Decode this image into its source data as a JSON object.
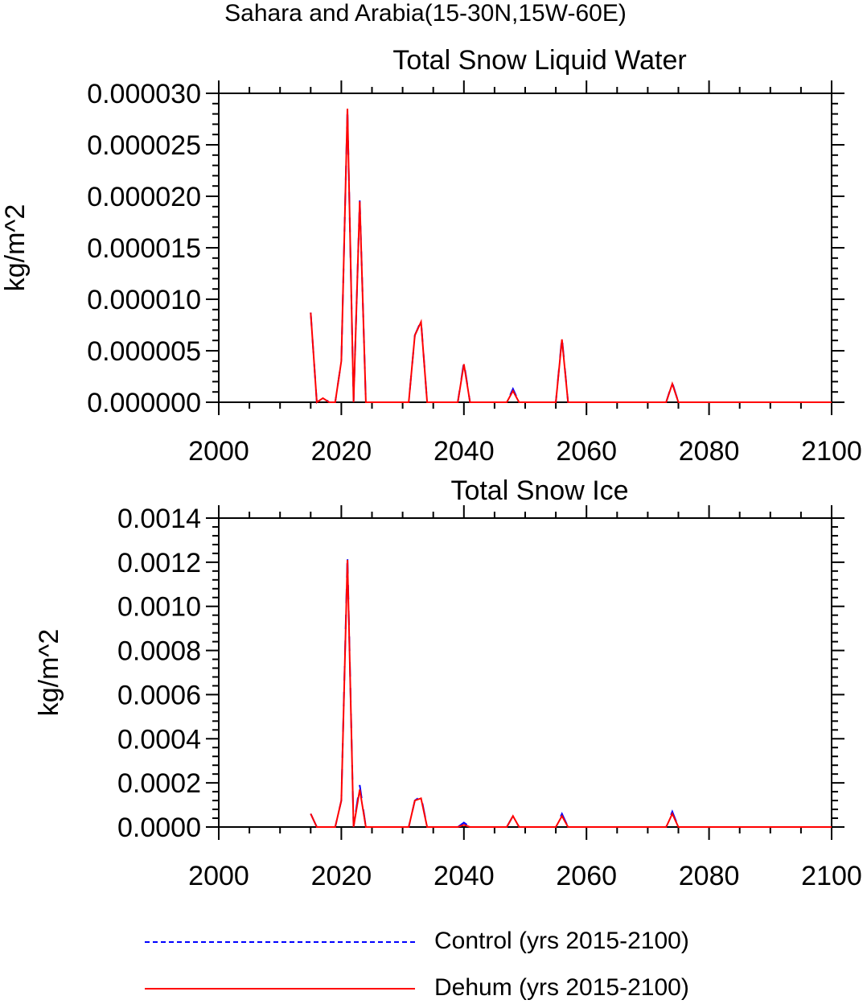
{
  "figure": {
    "supertitle": "Sahara and Arabia(15-30N,15W-60E)"
  },
  "legend": {
    "items": [
      {
        "label": "Control (yrs 2015-2100)",
        "color": "#0000ff",
        "style": "dashed"
      },
      {
        "label": "Dehum (yrs 2015-2100)",
        "color": "#ff0000",
        "style": "solid"
      }
    ]
  },
  "chart_data": [
    {
      "type": "line",
      "title": "Total Snow Liquid Water",
      "ylabel": "kg/m^2",
      "xlabel": "",
      "xlim": [
        2000,
        2100
      ],
      "ylim": [
        0,
        3e-05
      ],
      "xticks": [
        "2000",
        "2020",
        "2040",
        "2060",
        "2080",
        "2100"
      ],
      "yticks": [
        "0.000000",
        "0.000005",
        "0.000010",
        "0.000015",
        "0.000020",
        "0.000025",
        "0.000030"
      ],
      "grid": false,
      "x": [
        2015,
        2016,
        2017,
        2018,
        2019,
        2020,
        2021,
        2022,
        2023,
        2024,
        2025,
        2026,
        2027,
        2028,
        2029,
        2030,
        2031,
        2032,
        2033,
        2034,
        2035,
        2036,
        2037,
        2038,
        2039,
        2040,
        2041,
        2042,
        2043,
        2044,
        2045,
        2046,
        2047,
        2048,
        2049,
        2050,
        2051,
        2052,
        2053,
        2054,
        2055,
        2056,
        2057,
        2058,
        2059,
        2060,
        2061,
        2062,
        2063,
        2064,
        2065,
        2066,
        2067,
        2068,
        2069,
        2070,
        2071,
        2072,
        2073,
        2074,
        2075,
        2076,
        2077,
        2078,
        2079,
        2080,
        2081,
        2082,
        2083,
        2084,
        2085,
        2086,
        2087,
        2088,
        2089,
        2090,
        2091,
        2092,
        2093,
        2094,
        2095,
        2096,
        2097,
        2098,
        2099,
        2100
      ],
      "series": [
        {
          "name": "Control (yrs 2015-2100)",
          "color": "#0000ff",
          "style": "dashed",
          "values": [
            8.7e-06,
            0,
            5e-07,
            0,
            0,
            4e-06,
            2.85e-05,
            0,
            1.96e-05,
            0,
            0,
            0,
            0,
            0,
            0,
            0,
            0,
            6.5e-06,
            7.9e-06,
            0,
            0,
            0,
            0,
            0,
            0,
            3.9e-06,
            0,
            0,
            0,
            0,
            0,
            0,
            0,
            1.3e-06,
            0,
            0,
            0,
            0,
            0,
            0,
            0,
            6.3e-06,
            0,
            0,
            0,
            0,
            0,
            0,
            0,
            0,
            0,
            0,
            0,
            0,
            0,
            0,
            0,
            0,
            0,
            1.9e-06,
            0,
            0,
            0,
            0,
            0,
            0,
            0,
            0,
            0,
            0,
            0,
            0,
            0,
            0,
            0,
            0,
            0,
            0,
            0,
            0,
            0,
            0,
            0,
            0,
            0,
            0
          ]
        },
        {
          "name": "Dehum (yrs 2015-2100)",
          "color": "#ff0000",
          "style": "solid",
          "values": [
            8.7e-06,
            0,
            4e-07,
            0,
            0,
            4e-06,
            2.85e-05,
            0,
            1.95e-05,
            0,
            0,
            0,
            0,
            0,
            0,
            0,
            0,
            6.5e-06,
            7.8e-06,
            0,
            0,
            0,
            0,
            0,
            0,
            3.7e-06,
            0,
            0,
            0,
            0,
            0,
            0,
            0,
            1.1e-06,
            0,
            0,
            0,
            0,
            0,
            0,
            0,
            6.1e-06,
            0,
            0,
            0,
            0,
            0,
            0,
            0,
            0,
            0,
            0,
            0,
            0,
            0,
            0,
            0,
            0,
            0,
            1.8e-06,
            0,
            0,
            0,
            0,
            0,
            0,
            0,
            0,
            0,
            0,
            0,
            0,
            0,
            0,
            0,
            0,
            0,
            0,
            0,
            0,
            0,
            0,
            0,
            0,
            0,
            0
          ]
        }
      ]
    },
    {
      "type": "line",
      "title": "Total Snow Ice",
      "ylabel": "kg/m^2",
      "xlabel": "",
      "xlim": [
        2000,
        2100
      ],
      "ylim": [
        0,
        0.0014
      ],
      "xticks": [
        "2000",
        "2020",
        "2040",
        "2060",
        "2080",
        "2100"
      ],
      "yticks": [
        "0.0000",
        "0.0002",
        "0.0004",
        "0.0006",
        "0.0008",
        "0.0010",
        "0.0012",
        "0.0014"
      ],
      "grid": false,
      "x": [
        2015,
        2016,
        2017,
        2018,
        2019,
        2020,
        2021,
        2022,
        2023,
        2024,
        2025,
        2026,
        2027,
        2028,
        2029,
        2030,
        2031,
        2032,
        2033,
        2034,
        2035,
        2036,
        2037,
        2038,
        2039,
        2040,
        2041,
        2042,
        2043,
        2044,
        2045,
        2046,
        2047,
        2048,
        2049,
        2050,
        2051,
        2052,
        2053,
        2054,
        2055,
        2056,
        2057,
        2058,
        2059,
        2060,
        2061,
        2062,
        2063,
        2064,
        2065,
        2066,
        2067,
        2068,
        2069,
        2070,
        2071,
        2072,
        2073,
        2074,
        2075,
        2076,
        2077,
        2078,
        2079,
        2080,
        2081,
        2082,
        2083,
        2084,
        2085,
        2086,
        2087,
        2088,
        2089,
        2090,
        2091,
        2092,
        2093,
        2094,
        2095,
        2096,
        2097,
        2098,
        2099,
        2100
      ],
      "series": [
        {
          "name": "Control (yrs 2015-2100)",
          "color": "#0000ff",
          "style": "dashed",
          "values": [
            6e-05,
            0,
            0,
            0,
            0,
            0.00012,
            0.00123,
            0,
            0.00019,
            0,
            0,
            0,
            0,
            0,
            0,
            0,
            0,
            0.00012,
            0.00014,
            0,
            0,
            0,
            0,
            0,
            0,
            2e-05,
            0,
            0,
            0,
            0,
            0,
            0,
            0,
            5e-05,
            0,
            0,
            0,
            0,
            0,
            0,
            0,
            6e-05,
            0,
            0,
            0,
            0,
            0,
            0,
            0,
            0,
            0,
            0,
            0,
            0,
            0,
            0,
            0,
            0,
            0,
            7e-05,
            0,
            0,
            0,
            0,
            0,
            0,
            0,
            0,
            0,
            0,
            0,
            0,
            0,
            0,
            0,
            0,
            0,
            0,
            0,
            0,
            0,
            0,
            0,
            0,
            0,
            0
          ]
        },
        {
          "name": "Dehum (yrs 2015-2100)",
          "color": "#ff0000",
          "style": "solid",
          "values": [
            6e-05,
            0,
            0,
            0,
            0,
            0.00012,
            0.00121,
            0,
            0.00017,
            0,
            0,
            0,
            0,
            0,
            0,
            0,
            0,
            0.00012,
            0.00013,
            0,
            0,
            0,
            0,
            0,
            0,
            1e-05,
            0,
            0,
            0,
            0,
            0,
            0,
            0,
            5e-05,
            0,
            0,
            0,
            0,
            0,
            0,
            0,
            5e-05,
            0,
            0,
            0,
            0,
            0,
            0,
            0,
            0,
            0,
            0,
            0,
            0,
            0,
            0,
            0,
            0,
            0,
            6e-05,
            0,
            0,
            0,
            0,
            0,
            0,
            0,
            0,
            0,
            0,
            0,
            0,
            0,
            0,
            0,
            0,
            0,
            0,
            0,
            0,
            0,
            0,
            0,
            0,
            0,
            0
          ]
        }
      ]
    }
  ]
}
